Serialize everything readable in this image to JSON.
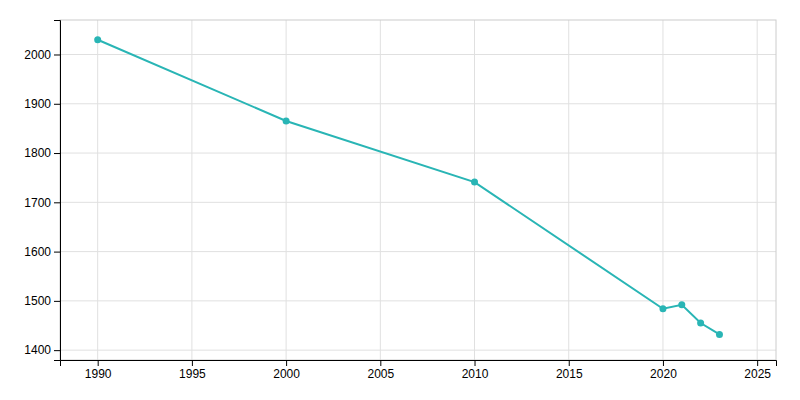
{
  "chart_data": {
    "type": "line",
    "x": [
      1990,
      2000,
      2010,
      2020,
      2021,
      2022,
      2023
    ],
    "values": [
      2030,
      1865,
      1741,
      1484,
      1492,
      1455,
      1432
    ],
    "color": "#29b5b5",
    "marker": "circle",
    "xlim": [
      1988,
      2026
    ],
    "ylim": [
      1380,
      2070
    ],
    "xticks": [
      1990,
      1995,
      2000,
      2005,
      2010,
      2015,
      2020,
      2025
    ],
    "yticks": [
      1400,
      1500,
      1600,
      1700,
      1800,
      1900,
      2000
    ],
    "grid": true
  }
}
